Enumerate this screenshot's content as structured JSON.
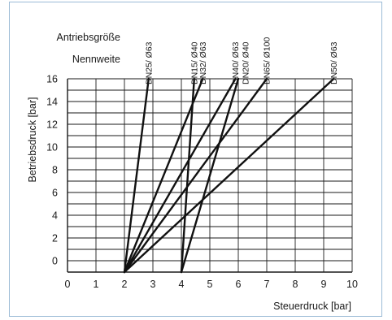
{
  "chart_data": {
    "type": "line",
    "title": "",
    "header_labels": {
      "actuator": "Antriebsgröße",
      "nominal": "Nennweite"
    },
    "xlabel": "Steuerdruck [bar]",
    "ylabel": "Betriebsdruck [bar]",
    "xlim": [
      0,
      10
    ],
    "ylim": [
      -1,
      16
    ],
    "x_ticks": [
      "0",
      "1",
      "2",
      "3",
      "4",
      "5",
      "6",
      "7",
      "8",
      "9",
      "10"
    ],
    "y_ticks": [
      "0",
      "2",
      "4",
      "6",
      "8",
      "10",
      "12",
      "14",
      "16"
    ],
    "grid": true,
    "series": [
      {
        "name": "DN25/ Ø63",
        "points": [
          [
            2,
            -1
          ],
          [
            2.85,
            16
          ]
        ]
      },
      {
        "name": "DN15/ Ø40",
        "points": [
          [
            4,
            -1
          ],
          [
            4.45,
            16
          ]
        ]
      },
      {
        "name": "DN32/ Ø63",
        "points": [
          [
            2,
            -1
          ],
          [
            4.75,
            16
          ]
        ]
      },
      {
        "name": "DN40/ Ø63",
        "points": [
          [
            2,
            -1
          ],
          [
            5.9,
            16
          ]
        ]
      },
      {
        "name": "DN20/ Ø40",
        "points": [
          [
            4,
            -1
          ],
          [
            6.0,
            16
          ]
        ]
      },
      {
        "name": "DN65/ Ø100",
        "points": [
          [
            2,
            -1
          ],
          [
            7.0,
            16
          ]
        ]
      },
      {
        "name": "DN50/ Ø63",
        "points": [
          [
            2,
            -1
          ],
          [
            9.35,
            16
          ]
        ]
      }
    ],
    "series_label_positions": [
      {
        "name": "DN25/ Ø63",
        "x": 2.85
      },
      {
        "name": "DN15/ Ø40",
        "x": 4.45
      },
      {
        "name": "DN32/ Ø63",
        "x": 4.75
      },
      {
        "name": "DN40/ Ø63",
        "x": 5.9
      },
      {
        "name": "DN20/ Ø40",
        "x": 6.25
      },
      {
        "name": "DN65/ Ø100",
        "x": 7.0
      },
      {
        "name": "DN50/ Ø63",
        "x": 9.35
      }
    ],
    "colors": {
      "grid": "#1a1a1a",
      "lines": "#111111",
      "frame": "#9bbbd6"
    }
  }
}
